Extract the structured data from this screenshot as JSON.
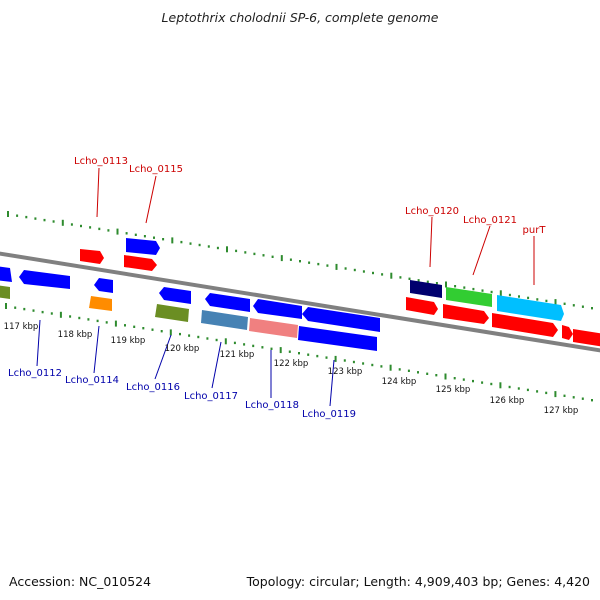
{
  "title": "Leptothrix cholodnii SP-6, complete genome",
  "footer": {
    "accession": "Accession: NC_010524",
    "summary": "Topology: circular; Length: 4,909,403 bp; Genes: 4,420"
  },
  "colors": {
    "forward_label": "#cc0000",
    "reverse_label": "#0000aa",
    "backbone": "#808080",
    "ticks": "#2e8b2e"
  },
  "scale_labels": [
    "117 kbp",
    "118 kbp",
    "119 kbp",
    "120 kbp",
    "121 kbp",
    "122 kbp",
    "123 kbp",
    "124 kbp",
    "125 kbp",
    "126 kbp",
    "127 kbp"
  ],
  "labels_top": [
    "Lcho_0113",
    "Lcho_0115",
    "Lcho_0120",
    "Lcho_0121",
    "purT"
  ],
  "labels_bottom": [
    "Lcho_0112",
    "Lcho_0114",
    "Lcho_0116",
    "Lcho_0117",
    "Lcho_0118",
    "Lcho_0119"
  ]
}
